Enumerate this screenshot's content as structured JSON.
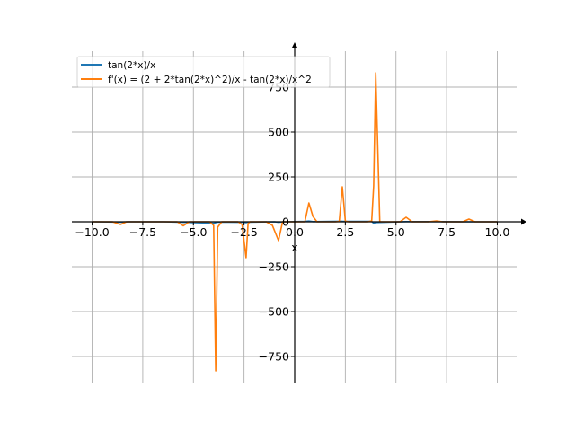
{
  "chart_data": {
    "type": "line",
    "xlabel": "x",
    "ylabel": "",
    "xlim": [
      -11.0,
      11.0
    ],
    "ylim": [
      -900,
      950
    ],
    "grid": true,
    "legend_position": "top-left",
    "x_ticks": [
      -10.0,
      -7.5,
      -5.0,
      -2.5,
      0.0,
      2.5,
      5.0,
      7.5,
      10.0
    ],
    "x_tick_labels": [
      "−10.0",
      "−7.5",
      "−5.0",
      "−2.5",
      "0.0",
      "2.5",
      "5.0",
      "7.5",
      "10.0"
    ],
    "y_ticks": [
      -750,
      -500,
      -250,
      0,
      250,
      500,
      750
    ],
    "y_tick_labels": [
      "−750",
      "−500",
      "−250",
      "0",
      "250",
      "500",
      "750"
    ],
    "series": [
      {
        "name": "tan(2*x)/x",
        "color": "#1f77b4",
        "x": [
          -10,
          -8.6,
          -8.2,
          -6.5,
          -5.5,
          -4.0,
          -3.9,
          -3.8,
          -2.5,
          -2.4,
          -2.3,
          -1.0,
          -0.8,
          -0.5,
          0.5,
          0.7,
          0.9,
          2.3,
          2.4,
          3.8,
          3.9,
          4.0,
          5.5,
          7.0,
          8.6,
          10
        ],
        "y": [
          0,
          -2,
          0,
          0,
          -3,
          -8,
          -5,
          -2,
          -3,
          -5,
          -2,
          0,
          -3,
          0,
          2,
          4,
          1,
          3,
          2,
          2,
          -8,
          -4,
          1,
          1,
          0,
          0
        ]
      },
      {
        "name": "f'(x) = (2 + 2*tan(2*x)^2)/x - tan(2*x)/x^2",
        "color": "#ff7f0e",
        "x": [
          -10,
          -9.0,
          -8.6,
          -8.3,
          -7.0,
          -5.8,
          -5.5,
          -5.2,
          -4.2,
          -4.0,
          -3.9,
          -3.8,
          -3.6,
          -2.8,
          -2.6,
          -2.4,
          -2.3,
          -2.2,
          -1.4,
          -1.1,
          -0.8,
          -0.6,
          0.5,
          0.7,
          0.9,
          1.1,
          2.0,
          2.2,
          2.35,
          2.5,
          2.7,
          3.6,
          3.8,
          3.9,
          4.0,
          4.2,
          5.2,
          5.5,
          5.8,
          6.6,
          7.0,
          7.3,
          8.3,
          8.6,
          8.9,
          10
        ],
        "y": [
          0,
          0,
          -15,
          0,
          0,
          0,
          -22,
          0,
          0,
          -20,
          -830,
          -30,
          0,
          0,
          -15,
          -200,
          -10,
          0,
          0,
          -20,
          -105,
          0,
          0,
          105,
          30,
          0,
          0,
          2,
          195,
          3,
          0,
          0,
          5,
          200,
          830,
          0,
          0,
          25,
          0,
          0,
          5,
          0,
          0,
          15,
          0,
          0
        ]
      }
    ]
  }
}
